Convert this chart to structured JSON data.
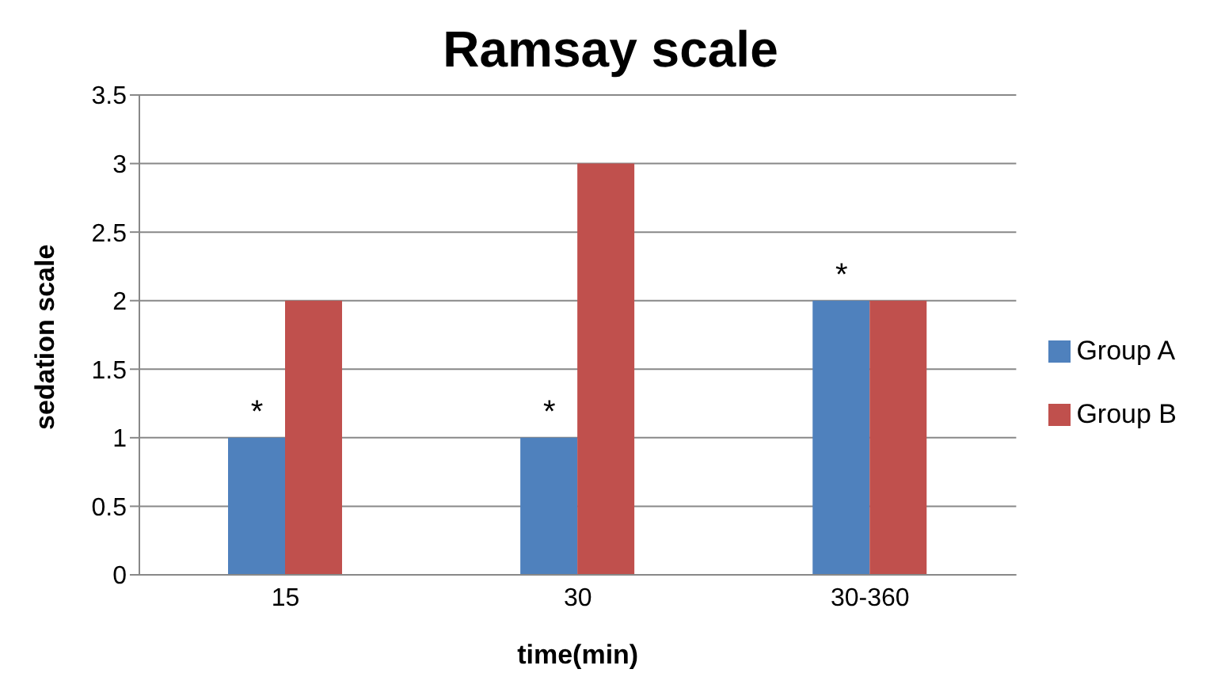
{
  "chart_data": {
    "type": "bar",
    "title": "Ramsay scale",
    "xlabel": "time(min)",
    "ylabel": "sedation scale",
    "categories": [
      "15",
      "30",
      "30-360"
    ],
    "series": [
      {
        "name": "Group A",
        "color": "#4f81bd",
        "values": [
          1,
          1,
          2
        ]
      },
      {
        "name": "Group B",
        "color": "#c0504d",
        "values": [
          2,
          3,
          2
        ]
      }
    ],
    "ylim": [
      0,
      3.5
    ],
    "yticks": [
      0,
      0.5,
      1,
      1.5,
      2,
      2.5,
      3,
      3.5
    ],
    "grid": "y",
    "legend": "right",
    "annotations": [
      {
        "text": "*",
        "x": "15",
        "y": 1
      },
      {
        "text": "*",
        "x": "30",
        "y": 1
      },
      {
        "text": "*",
        "x": "30-360",
        "y": 2
      }
    ]
  }
}
